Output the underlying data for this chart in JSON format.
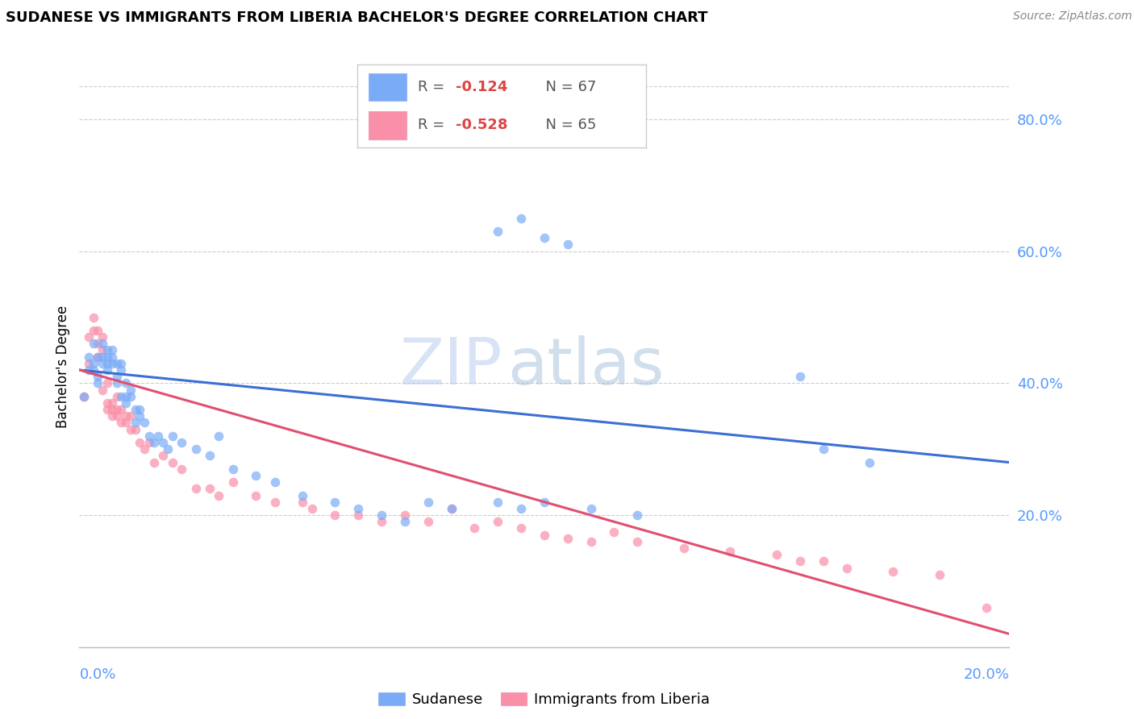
{
  "title": "SUDANESE VS IMMIGRANTS FROM LIBERIA BACHELOR'S DEGREE CORRELATION CHART",
  "source": "Source: ZipAtlas.com",
  "ylabel": "Bachelor's Degree",
  "watermark": "ZIPatlas",
  "xlim": [
    0.0,
    0.2
  ],
  "ylim": [
    0.0,
    0.85
  ],
  "yticks": [
    0.2,
    0.4,
    0.6,
    0.8
  ],
  "ytick_labels": [
    "20.0%",
    "40.0%",
    "60.0%",
    "80.0%"
  ],
  "color_sudanese": "#7aabf7",
  "color_liberia": "#f98fa8",
  "line_color_sudanese": "#3b6fd4",
  "line_color_liberia": "#e05070",
  "sudanese_x": [
    0.001,
    0.002,
    0.002,
    0.003,
    0.003,
    0.003,
    0.004,
    0.004,
    0.004,
    0.005,
    0.005,
    0.005,
    0.006,
    0.006,
    0.006,
    0.006,
    0.007,
    0.007,
    0.007,
    0.008,
    0.008,
    0.008,
    0.009,
    0.009,
    0.009,
    0.01,
    0.01,
    0.01,
    0.011,
    0.011,
    0.012,
    0.012,
    0.013,
    0.013,
    0.014,
    0.015,
    0.016,
    0.017,
    0.018,
    0.019,
    0.02,
    0.022,
    0.025,
    0.028,
    0.03,
    0.033,
    0.038,
    0.042,
    0.048,
    0.055,
    0.06,
    0.065,
    0.07,
    0.075,
    0.08,
    0.09,
    0.095,
    0.1,
    0.11,
    0.12,
    0.09,
    0.095,
    0.1,
    0.105,
    0.155,
    0.16,
    0.17
  ],
  "sudanese_y": [
    0.38,
    0.42,
    0.44,
    0.43,
    0.42,
    0.46,
    0.4,
    0.41,
    0.44,
    0.43,
    0.44,
    0.46,
    0.43,
    0.44,
    0.42,
    0.45,
    0.43,
    0.44,
    0.45,
    0.4,
    0.41,
    0.43,
    0.42,
    0.43,
    0.38,
    0.4,
    0.38,
    0.37,
    0.39,
    0.38,
    0.36,
    0.34,
    0.35,
    0.36,
    0.34,
    0.32,
    0.31,
    0.32,
    0.31,
    0.3,
    0.32,
    0.31,
    0.3,
    0.29,
    0.32,
    0.27,
    0.26,
    0.25,
    0.23,
    0.22,
    0.21,
    0.2,
    0.19,
    0.22,
    0.21,
    0.22,
    0.21,
    0.22,
    0.21,
    0.2,
    0.63,
    0.65,
    0.62,
    0.61,
    0.41,
    0.3,
    0.28
  ],
  "liberia_x": [
    0.001,
    0.002,
    0.002,
    0.003,
    0.003,
    0.004,
    0.004,
    0.004,
    0.005,
    0.005,
    0.005,
    0.006,
    0.006,
    0.006,
    0.007,
    0.007,
    0.007,
    0.008,
    0.008,
    0.008,
    0.009,
    0.009,
    0.01,
    0.01,
    0.011,
    0.011,
    0.012,
    0.013,
    0.014,
    0.015,
    0.016,
    0.018,
    0.02,
    0.022,
    0.025,
    0.028,
    0.03,
    0.033,
    0.038,
    0.042,
    0.048,
    0.05,
    0.055,
    0.06,
    0.065,
    0.07,
    0.075,
    0.08,
    0.085,
    0.09,
    0.095,
    0.1,
    0.105,
    0.11,
    0.115,
    0.12,
    0.13,
    0.14,
    0.15,
    0.155,
    0.16,
    0.165,
    0.175,
    0.185,
    0.195
  ],
  "liberia_y": [
    0.38,
    0.43,
    0.47,
    0.48,
    0.5,
    0.46,
    0.48,
    0.44,
    0.45,
    0.47,
    0.39,
    0.36,
    0.4,
    0.37,
    0.36,
    0.35,
    0.37,
    0.38,
    0.36,
    0.35,
    0.34,
    0.36,
    0.34,
    0.35,
    0.33,
    0.35,
    0.33,
    0.31,
    0.3,
    0.31,
    0.28,
    0.29,
    0.28,
    0.27,
    0.24,
    0.24,
    0.23,
    0.25,
    0.23,
    0.22,
    0.22,
    0.21,
    0.2,
    0.2,
    0.19,
    0.2,
    0.19,
    0.21,
    0.18,
    0.19,
    0.18,
    0.17,
    0.165,
    0.16,
    0.175,
    0.16,
    0.15,
    0.145,
    0.14,
    0.13,
    0.13,
    0.12,
    0.115,
    0.11,
    0.06
  ],
  "trend_sudanese": [
    0.42,
    0.28
  ],
  "trend_liberia": [
    0.42,
    0.02
  ]
}
